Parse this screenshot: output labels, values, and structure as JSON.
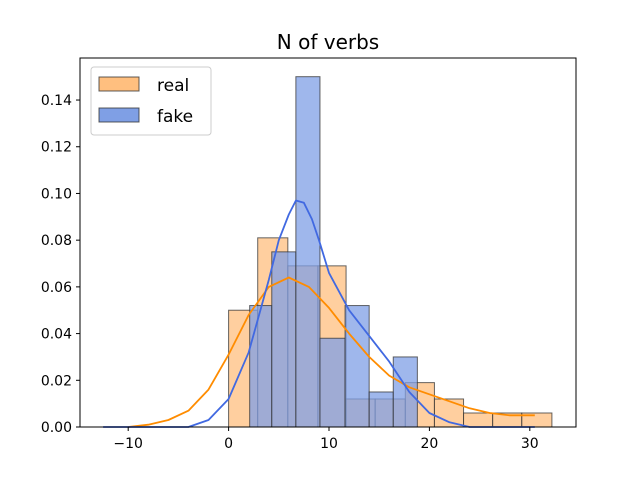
{
  "chart_data": {
    "type": "bar",
    "title": "N of verbs",
    "xlabel": "",
    "ylabel": "",
    "xlim": [
      -14.8,
      34.6
    ],
    "ylim": [
      0,
      0.158
    ],
    "xticks": [
      -10,
      0,
      10,
      20,
      30
    ],
    "xtick_labels": [
      "−10",
      "0",
      "10",
      "20",
      "30"
    ],
    "yticks": [
      0,
      0.02,
      0.04,
      0.06,
      0.08,
      0.1,
      0.12,
      0.14
    ],
    "ytick_labels": [
      "0.00",
      "0.02",
      "0.04",
      "0.06",
      "0.08",
      "0.10",
      "0.12",
      "0.14"
    ],
    "legend_position": "top-left",
    "series": [
      {
        "name": "real",
        "kind": "histogram",
        "color": "#ffbf7f",
        "kde_color": "#ff8c00",
        "bins": [
          {
            "x0": 0,
            "x1": 2.9,
            "density": 0.05
          },
          {
            "x0": 2.9,
            "x1": 5.9,
            "density": 0.081
          },
          {
            "x0": 5.9,
            "x1": 8.9,
            "density": 0.069
          },
          {
            "x0": 8.9,
            "x1": 11.7,
            "density": 0.069
          },
          {
            "x0": 11.7,
            "x1": 14.6,
            "density": 0.012
          },
          {
            "x0": 14.6,
            "x1": 17.6,
            "density": 0.012
          },
          {
            "x0": 17.6,
            "x1": 20.5,
            "density": 0.019
          },
          {
            "x0": 20.5,
            "x1": 23.4,
            "density": 0.012
          },
          {
            "x0": 23.4,
            "x1": 26.3,
            "density": 0.006
          },
          {
            "x0": 26.3,
            "x1": 29.2,
            "density": 0.006
          },
          {
            "x0": 29.2,
            "x1": 32.2,
            "density": 0.006
          }
        ],
        "kde": {
          "x": [
            -10,
            -8,
            -6,
            -4,
            -2,
            0,
            2,
            4,
            6,
            8,
            10,
            12,
            14,
            16,
            18,
            20,
            22,
            24,
            26,
            28,
            30.5
          ],
          "y": [
            0.0,
            0.001,
            0.003,
            0.007,
            0.016,
            0.031,
            0.048,
            0.06,
            0.064,
            0.06,
            0.051,
            0.04,
            0.03,
            0.022,
            0.017,
            0.014,
            0.011,
            0.008,
            0.006,
            0.005,
            0.005
          ]
        }
      },
      {
        "name": "fake",
        "kind": "histogram",
        "color": "#7f9fe5",
        "kde_color": "#4169e1",
        "bins": [
          {
            "x0": 2.1,
            "x1": 4.3,
            "density": 0.052
          },
          {
            "x0": 4.3,
            "x1": 6.7,
            "density": 0.075
          },
          {
            "x0": 6.7,
            "x1": 9.1,
            "density": 0.15
          },
          {
            "x0": 9.1,
            "x1": 11.6,
            "density": 0.038
          },
          {
            "x0": 11.6,
            "x1": 14.0,
            "density": 0.052
          },
          {
            "x0": 14.0,
            "x1": 16.4,
            "density": 0.015
          },
          {
            "x0": 16.4,
            "x1": 18.8,
            "density": 0.03
          }
        ],
        "kde": {
          "x": [
            -12.5,
            -8,
            -4,
            -2,
            0,
            2,
            4,
            5,
            6,
            6.7,
            7.5,
            8.3,
            9,
            10,
            12,
            14,
            16,
            18,
            20,
            22,
            24,
            28,
            30.5
          ],
          "y": [
            0.0,
            0.0,
            0.0,
            0.003,
            0.012,
            0.032,
            0.063,
            0.08,
            0.091,
            0.097,
            0.096,
            0.089,
            0.08,
            0.066,
            0.05,
            0.039,
            0.028,
            0.015,
            0.006,
            0.002,
            0.0,
            0.0,
            0.0
          ]
        }
      }
    ]
  }
}
